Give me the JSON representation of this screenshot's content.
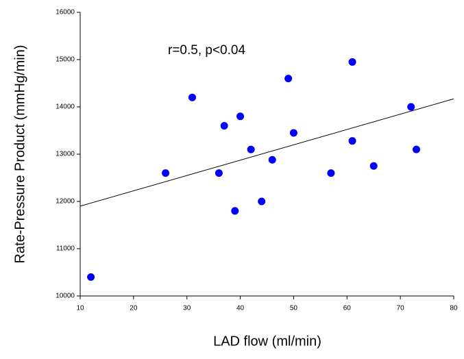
{
  "chart_data": {
    "type": "scatter",
    "annotation": "r=0.5, p<0.04",
    "x_label": "LAD flow (ml/min)",
    "y_label": "Rate-Pressure Product (mmHg/min)",
    "series": [
      {
        "color": "#0000ff",
        "x": [
          12,
          26,
          31,
          36,
          37,
          39,
          40,
          42,
          44,
          46,
          50,
          49,
          57,
          61,
          61,
          65,
          72,
          73
        ],
        "values": [
          10400,
          12600,
          14200,
          12600,
          13600,
          11800,
          13800,
          13100,
          12000,
          12880,
          13450,
          14600,
          12600,
          13280,
          14950,
          12750,
          14000,
          13100
        ]
      }
    ],
    "trendline": {
      "color": "#000000",
      "x": [
        10,
        80
      ],
      "values": [
        11900,
        14170
      ]
    },
    "xlim": [
      10,
      80
    ],
    "xticks": [
      10,
      20,
      30,
      40,
      50,
      60,
      70,
      80
    ],
    "ylim": [
      10000,
      16000
    ],
    "yticks": [
      10000,
      11000,
      12000,
      13000,
      14000,
      15000,
      16000
    ]
  }
}
